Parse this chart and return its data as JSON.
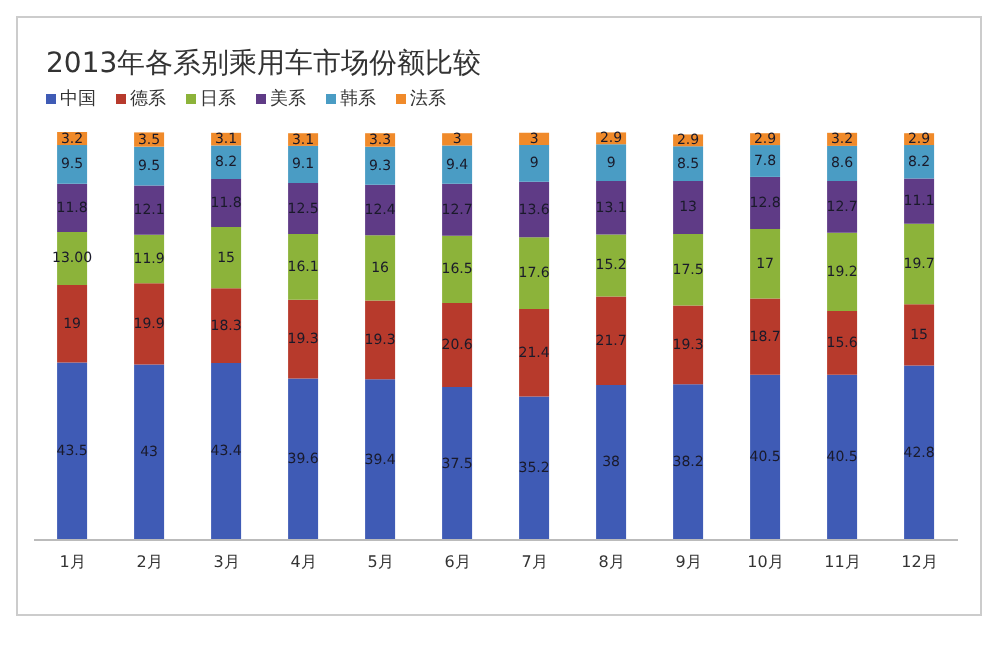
{
  "chart_data": {
    "type": "bar",
    "title": "2013年各系别乘用车市场份额比较",
    "stacked": true,
    "legend": "top left",
    "categories": [
      "1月",
      "2月",
      "3月",
      "4月",
      "5月",
      "6月",
      "7月",
      "8月",
      "9月",
      "10月",
      "11月",
      "12月"
    ],
    "series": [
      {
        "name": "中国",
        "color": "#3f5bb5",
        "values": [
          43.5,
          43,
          43.4,
          39.6,
          39.4,
          37.5,
          35.2,
          38,
          38.2,
          40.5,
          40.5,
          42.8
        ],
        "value_labels": [
          "43.5",
          "43",
          "43.4",
          "39.6",
          "39.4",
          "37.5",
          "35.2",
          "38",
          "38.2",
          "40.5",
          "40.5",
          "42.8"
        ]
      },
      {
        "name": "德系",
        "color": "#b73a2c",
        "values": [
          19,
          19.9,
          18.3,
          19.3,
          19.3,
          20.6,
          21.4,
          21.7,
          19.3,
          18.7,
          15.6,
          15
        ],
        "value_labels": [
          "19",
          "19.9",
          "18.3",
          "19.3",
          "19.3",
          "20.6",
          "21.4",
          "21.7",
          "19.3",
          "18.7",
          "15.6",
          "15"
        ]
      },
      {
        "name": "日系",
        "color": "#8cb33a",
        "values": [
          13,
          11.9,
          15,
          16.1,
          16,
          16.5,
          17.6,
          15.2,
          17.5,
          17,
          19.2,
          19.7
        ],
        "value_labels": [
          "13.00",
          "11.9",
          "15",
          "16.1",
          "16",
          "16.5",
          "17.6",
          "15.2",
          "17.5",
          "17",
          "19.2",
          "19.7"
        ]
      },
      {
        "name": "美系",
        "color": "#5f3b86",
        "values": [
          11.8,
          12.1,
          11.8,
          12.5,
          12.4,
          12.7,
          13.6,
          13.1,
          13,
          12.8,
          12.7,
          11.1
        ],
        "value_labels": [
          "11.8",
          "12.1",
          "11.8",
          "12.5",
          "12.4",
          "12.7",
          "13.6",
          "13.1",
          "13",
          "12.8",
          "12.7",
          "11.1"
        ]
      },
      {
        "name": "韩系",
        "color": "#4a9cc4",
        "values": [
          9.5,
          9.5,
          8.2,
          9.1,
          9.3,
          9.4,
          9,
          9,
          8.5,
          7.8,
          8.6,
          8.2
        ],
        "value_labels": [
          "9.5",
          "9.5",
          "8.2",
          "9.1",
          "9.3",
          "9.4",
          "9",
          "9",
          "8.5",
          "7.8",
          "8.6",
          "8.2"
        ]
      },
      {
        "name": "法系",
        "color": "#f08a2a",
        "values": [
          3.2,
          3.5,
          3.1,
          3.1,
          3.3,
          3,
          3,
          2.9,
          2.9,
          2.9,
          3.2,
          2.9
        ],
        "value_labels": [
          "3.2",
          "3.5",
          "3.1",
          "3.1",
          "3.3",
          "3",
          "3",
          "2.9",
          "2.9",
          "2.9",
          "3.2",
          "2.9"
        ]
      }
    ]
  }
}
